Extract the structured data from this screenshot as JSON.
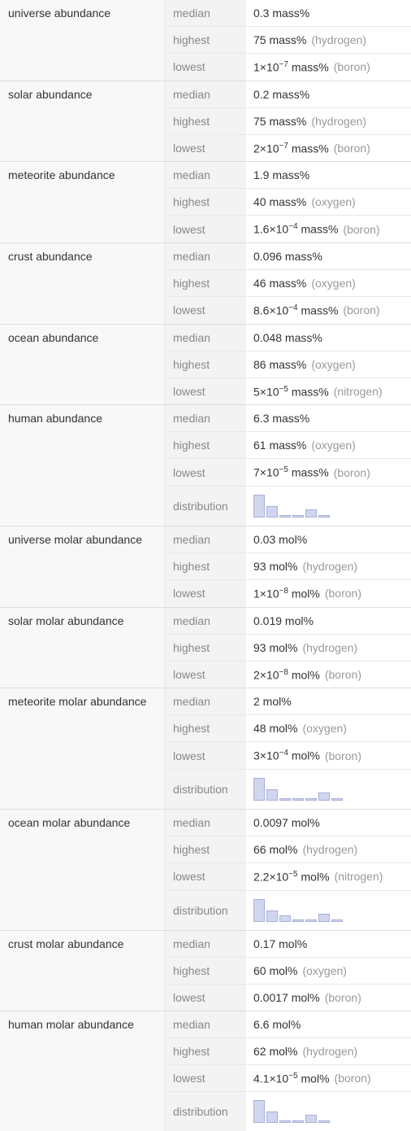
{
  "groups": [
    {
      "name": "universe abundance",
      "rows": [
        {
          "k": "median",
          "v": "0.3 mass%",
          "n": ""
        },
        {
          "k": "highest",
          "v": "75 mass%",
          "n": "(hydrogen)"
        },
        {
          "k": "lowest",
          "v": "1×10⁻⁷ mass%",
          "n": "(boron)"
        }
      ]
    },
    {
      "name": "solar abundance",
      "rows": [
        {
          "k": "median",
          "v": "0.2 mass%",
          "n": ""
        },
        {
          "k": "highest",
          "v": "75 mass%",
          "n": "(hydrogen)"
        },
        {
          "k": "lowest",
          "v": "2×10⁻⁷ mass%",
          "n": "(boron)"
        }
      ]
    },
    {
      "name": "meteorite abundance",
      "rows": [
        {
          "k": "median",
          "v": "1.9 mass%",
          "n": ""
        },
        {
          "k": "highest",
          "v": "40 mass%",
          "n": "(oxygen)"
        },
        {
          "k": "lowest",
          "v": "1.6×10⁻⁴ mass%",
          "n": "(boron)"
        }
      ]
    },
    {
      "name": "crust abundance",
      "rows": [
        {
          "k": "median",
          "v": "0.096 mass%",
          "n": ""
        },
        {
          "k": "highest",
          "v": "46 mass%",
          "n": "(oxygen)"
        },
        {
          "k": "lowest",
          "v": "8.6×10⁻⁴ mass%",
          "n": "(boron)"
        }
      ]
    },
    {
      "name": "ocean abundance",
      "rows": [
        {
          "k": "median",
          "v": "0.048 mass%",
          "n": ""
        },
        {
          "k": "highest",
          "v": "86 mass%",
          "n": "(oxygen)"
        },
        {
          "k": "lowest",
          "v": "5×10⁻⁵ mass%",
          "n": "(nitrogen)"
        }
      ]
    },
    {
      "name": "human abundance",
      "rows": [
        {
          "k": "median",
          "v": "6.3 mass%",
          "n": ""
        },
        {
          "k": "highest",
          "v": "61 mass%",
          "n": "(oxygen)"
        },
        {
          "k": "lowest",
          "v": "7×10⁻⁵ mass%",
          "n": "(boron)"
        },
        {
          "k": "distribution",
          "dist": [
            28,
            14,
            3,
            3,
            10,
            3
          ]
        }
      ]
    },
    {
      "name": "universe molar abundance",
      "rows": [
        {
          "k": "median",
          "v": "0.03 mol%",
          "n": ""
        },
        {
          "k": "highest",
          "v": "93 mol%",
          "n": "(hydrogen)"
        },
        {
          "k": "lowest",
          "v": "1×10⁻⁸ mol%",
          "n": "(boron)"
        }
      ]
    },
    {
      "name": "solar molar abundance",
      "rows": [
        {
          "k": "median",
          "v": "0.019 mol%",
          "n": ""
        },
        {
          "k": "highest",
          "v": "93 mol%",
          "n": "(hydrogen)"
        },
        {
          "k": "lowest",
          "v": "2×10⁻⁸ mol%",
          "n": "(boron)"
        }
      ]
    },
    {
      "name": "meteorite molar abundance",
      "rows": [
        {
          "k": "median",
          "v": "2 mol%",
          "n": ""
        },
        {
          "k": "highest",
          "v": "48 mol%",
          "n": "(oxygen)"
        },
        {
          "k": "lowest",
          "v": "3×10⁻⁴ mol%",
          "n": "(boron)"
        },
        {
          "k": "distribution",
          "dist": [
            28,
            14,
            3,
            3,
            3,
            10,
            3
          ]
        }
      ]
    },
    {
      "name": "ocean molar abundance",
      "rows": [
        {
          "k": "median",
          "v": "0.0097 mol%",
          "n": ""
        },
        {
          "k": "highest",
          "v": "66 mol%",
          "n": "(hydrogen)"
        },
        {
          "k": "lowest",
          "v": "2.2×10⁻⁵ mol%",
          "n": "(nitrogen)"
        },
        {
          "k": "distribution",
          "dist": [
            28,
            14,
            8,
            3,
            3,
            10,
            3
          ]
        }
      ]
    },
    {
      "name": "crust molar abundance",
      "rows": [
        {
          "k": "median",
          "v": "0.17 mol%",
          "n": ""
        },
        {
          "k": "highest",
          "v": "60 mol%",
          "n": "(oxygen)"
        },
        {
          "k": "lowest",
          "v": "0.0017 mol%",
          "n": "(boron)"
        }
      ]
    },
    {
      "name": "human molar abundance",
      "rows": [
        {
          "k": "median",
          "v": "6.6 mol%",
          "n": ""
        },
        {
          "k": "highest",
          "v": "62 mol%",
          "n": "(hydrogen)"
        },
        {
          "k": "lowest",
          "v": "4.1×10⁻⁵ mol%",
          "n": "(boron)"
        },
        {
          "k": "distribution",
          "dist": [
            28,
            14,
            3,
            3,
            10,
            3
          ]
        }
      ]
    }
  ],
  "colors": {
    "bar_fill": "#d0d6ee",
    "bar_border": "#a8b0d8"
  }
}
